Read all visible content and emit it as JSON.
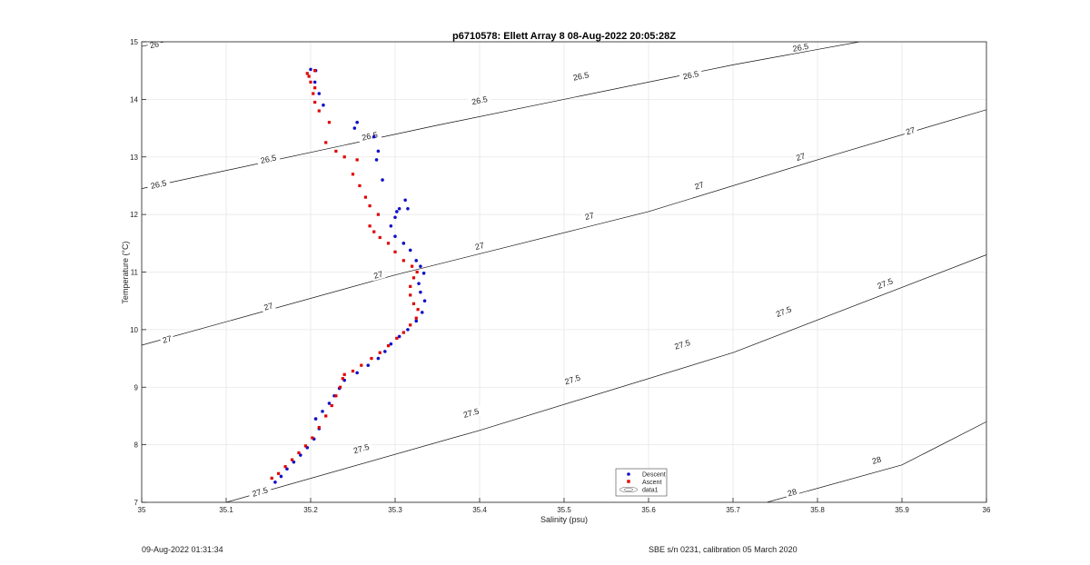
{
  "chart_data": {
    "type": "scatter",
    "title": "p6710578: Ellett Array 8 08-Aug-2022 20:05:28Z",
    "xlabel": "Salinity (psu)",
    "ylabel": "Temperature (°C)",
    "xlim": [
      35,
      36
    ],
    "ylim": [
      7,
      15
    ],
    "x_ticks": [
      "35",
      "35.1",
      "35.2",
      "35.3",
      "35.4",
      "35.5",
      "35.6",
      "35.7",
      "35.8",
      "35.9",
      "36"
    ],
    "y_ticks": [
      "7",
      "8",
      "9",
      "10",
      "11",
      "12",
      "13",
      "14",
      "15"
    ],
    "grid": true,
    "legend_position": "bottom-center",
    "legend": [
      "Descent",
      "Ascent",
      "data1"
    ],
    "contours": [
      {
        "level": "26",
        "points": [
          [
            35.0,
            14.92
          ],
          [
            35.06,
            15.1
          ]
        ],
        "labels": [
          [
            35.015,
            14.95
          ]
        ]
      },
      {
        "level": "26.5",
        "points": [
          [
            35.0,
            12.45
          ],
          [
            35.35,
            13.55
          ],
          [
            35.7,
            14.6
          ],
          [
            35.85,
            15.0
          ]
        ],
        "labels": [
          [
            35.02,
            12.52
          ],
          [
            35.15,
            12.96
          ],
          [
            35.27,
            13.36
          ],
          [
            35.4,
            13.98
          ],
          [
            35.52,
            14.4
          ],
          [
            35.65,
            14.42
          ],
          [
            35.78,
            14.9
          ]
        ]
      },
      {
        "level": "27",
        "points": [
          [
            35.0,
            9.73
          ],
          [
            35.3,
            10.95
          ],
          [
            35.6,
            12.05
          ],
          [
            35.8,
            12.95
          ],
          [
            36.0,
            13.82
          ]
        ],
        "labels": [
          [
            35.03,
            9.83
          ],
          [
            35.15,
            10.4
          ],
          [
            35.28,
            10.95
          ],
          [
            35.4,
            11.45
          ],
          [
            35.53,
            11.97
          ],
          [
            35.66,
            12.5
          ],
          [
            35.78,
            13.0
          ],
          [
            35.91,
            13.45
          ]
        ]
      },
      {
        "level": "27.5",
        "points": [
          [
            35.1,
            7.0
          ],
          [
            35.4,
            8.25
          ],
          [
            35.7,
            9.6
          ],
          [
            36.0,
            11.3
          ]
        ],
        "labels": [
          [
            35.14,
            7.18
          ],
          [
            35.26,
            7.93
          ],
          [
            35.39,
            8.55
          ],
          [
            35.51,
            9.13
          ],
          [
            35.64,
            9.74
          ],
          [
            35.76,
            10.31
          ],
          [
            35.88,
            10.8
          ]
        ]
      },
      {
        "level": "28",
        "points": [
          [
            35.74,
            7.0
          ],
          [
            35.9,
            7.65
          ],
          [
            36.0,
            8.4
          ]
        ],
        "labels": [
          [
            35.77,
            7.17
          ],
          [
            35.87,
            7.73
          ]
        ]
      }
    ],
    "series": [
      {
        "name": "Descent",
        "color": "#1010c8",
        "marker": "circle",
        "points": [
          [
            35.158,
            7.35
          ],
          [
            35.165,
            7.45
          ],
          [
            35.172,
            7.58
          ],
          [
            35.18,
            7.7
          ],
          [
            35.188,
            7.82
          ],
          [
            35.196,
            7.95
          ],
          [
            35.204,
            8.1
          ],
          [
            35.21,
            8.28
          ],
          [
            35.206,
            8.45
          ],
          [
            35.214,
            8.58
          ],
          [
            35.222,
            8.72
          ],
          [
            35.228,
            8.85
          ],
          [
            35.234,
            8.98
          ],
          [
            35.24,
            9.12
          ],
          [
            35.255,
            9.25
          ],
          [
            35.268,
            9.38
          ],
          [
            35.28,
            9.5
          ],
          [
            35.288,
            9.62
          ],
          [
            35.295,
            9.75
          ],
          [
            35.305,
            9.88
          ],
          [
            35.315,
            10.0
          ],
          [
            35.325,
            10.15
          ],
          [
            35.332,
            10.3
          ],
          [
            35.335,
            10.5
          ],
          [
            35.33,
            10.65
          ],
          [
            35.328,
            10.8
          ],
          [
            35.334,
            10.98
          ],
          [
            35.33,
            11.1
          ],
          [
            35.325,
            11.2
          ],
          [
            35.318,
            11.38
          ],
          [
            35.31,
            11.5
          ],
          [
            35.3,
            11.62
          ],
          [
            35.295,
            11.8
          ],
          [
            35.3,
            11.95
          ],
          [
            35.302,
            12.05
          ],
          [
            35.315,
            12.1
          ],
          [
            35.305,
            12.1
          ],
          [
            35.312,
            12.25
          ],
          [
            35.285,
            12.6
          ],
          [
            35.278,
            12.95
          ],
          [
            35.28,
            13.1
          ],
          [
            35.275,
            13.35
          ],
          [
            35.252,
            13.5
          ],
          [
            35.255,
            13.6
          ],
          [
            35.215,
            13.9
          ],
          [
            35.21,
            14.1
          ],
          [
            35.205,
            14.3
          ],
          [
            35.206,
            14.5
          ],
          [
            35.2,
            14.52
          ]
        ]
      },
      {
        "name": "Ascent",
        "color": "#e00000",
        "marker": "square",
        "points": [
          [
            35.154,
            7.42
          ],
          [
            35.162,
            7.5
          ],
          [
            35.17,
            7.62
          ],
          [
            35.178,
            7.74
          ],
          [
            35.186,
            7.86
          ],
          [
            35.194,
            7.98
          ],
          [
            35.202,
            8.12
          ],
          [
            35.21,
            8.3
          ],
          [
            35.218,
            8.5
          ],
          [
            35.225,
            8.68
          ],
          [
            35.23,
            8.85
          ],
          [
            35.235,
            9.0
          ],
          [
            35.238,
            9.15
          ],
          [
            35.24,
            9.22
          ],
          [
            35.25,
            9.28
          ],
          [
            35.26,
            9.38
          ],
          [
            35.272,
            9.5
          ],
          [
            35.282,
            9.6
          ],
          [
            35.292,
            9.72
          ],
          [
            35.302,
            9.85
          ],
          [
            35.31,
            9.95
          ],
          [
            35.318,
            10.08
          ],
          [
            35.325,
            10.2
          ],
          [
            35.327,
            10.35
          ],
          [
            35.322,
            10.45
          ],
          [
            35.318,
            10.6
          ],
          [
            35.318,
            10.75
          ],
          [
            35.322,
            10.9
          ],
          [
            35.326,
            11.0
          ],
          [
            35.32,
            11.1
          ],
          [
            35.31,
            11.2
          ],
          [
            35.3,
            11.35
          ],
          [
            35.292,
            11.5
          ],
          [
            35.282,
            11.6
          ],
          [
            35.275,
            11.7
          ],
          [
            35.27,
            11.8
          ],
          [
            35.28,
            12.0
          ],
          [
            35.27,
            12.15
          ],
          [
            35.265,
            12.3
          ],
          [
            35.258,
            12.5
          ],
          [
            35.25,
            12.7
          ],
          [
            35.255,
            12.95
          ],
          [
            35.24,
            13.0
          ],
          [
            35.23,
            13.1
          ],
          [
            35.218,
            13.25
          ],
          [
            35.222,
            13.6
          ],
          [
            35.21,
            13.8
          ],
          [
            35.205,
            13.95
          ],
          [
            35.203,
            14.1
          ],
          [
            35.205,
            14.2
          ],
          [
            35.2,
            14.3
          ],
          [
            35.198,
            14.4
          ],
          [
            35.196,
            14.45
          ],
          [
            35.205,
            14.5
          ]
        ]
      }
    ]
  },
  "footer": {
    "timestamp": "09-Aug-2022 01:31:34",
    "sensor": "SBE s/n 0231, calibration 05 March 2020"
  }
}
